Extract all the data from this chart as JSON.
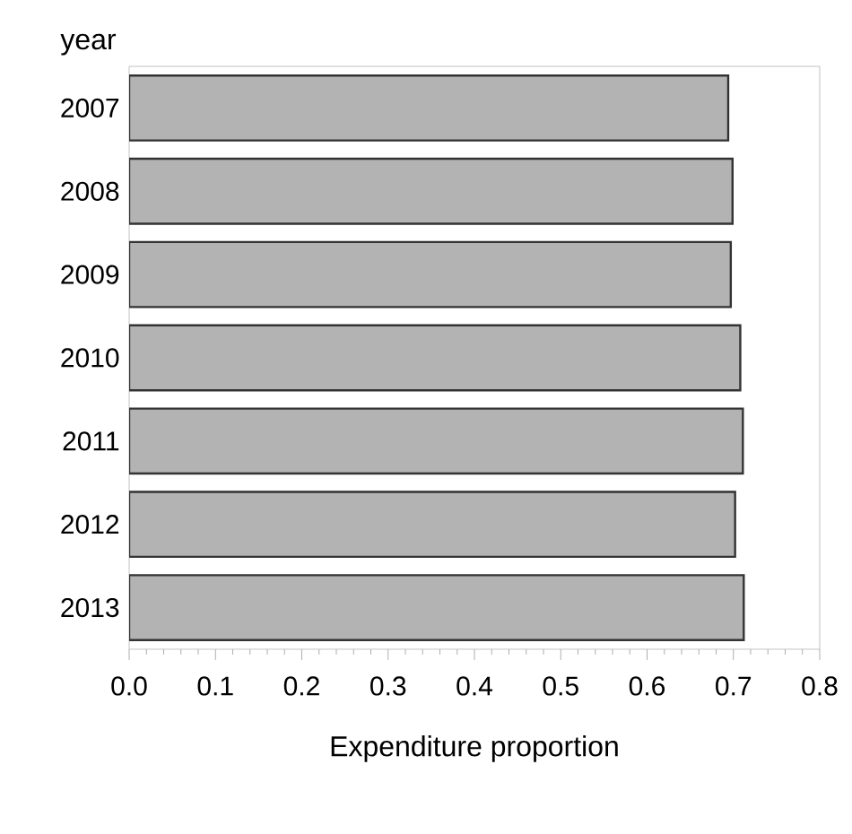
{
  "chart_data": {
    "type": "bar",
    "orientation": "horizontal",
    "ylabel": "year",
    "xlabel": "Expenditure proportion",
    "categories": [
      "2007",
      "2008",
      "2009",
      "2010",
      "2011",
      "2012",
      "2013"
    ],
    "values": [
      0.694,
      0.699,
      0.697,
      0.708,
      0.711,
      0.702,
      0.712
    ],
    "color": "#b3b3b3",
    "xlim": [
      0,
      0.8
    ],
    "xticks": [
      {
        "value": 0,
        "label": "0.0"
      },
      {
        "value": 0.1,
        "label": "0.1"
      },
      {
        "value": 0.2,
        "label": "0.2"
      },
      {
        "value": 0.3,
        "label": "0.3"
      },
      {
        "value": 0.4,
        "label": "0.4"
      },
      {
        "value": 0.5,
        "label": "0.5"
      },
      {
        "value": 0.6,
        "label": "0.6"
      },
      {
        "value": 0.7,
        "label": "0.7"
      },
      {
        "value": 0.8,
        "label": "0.8"
      }
    ]
  }
}
